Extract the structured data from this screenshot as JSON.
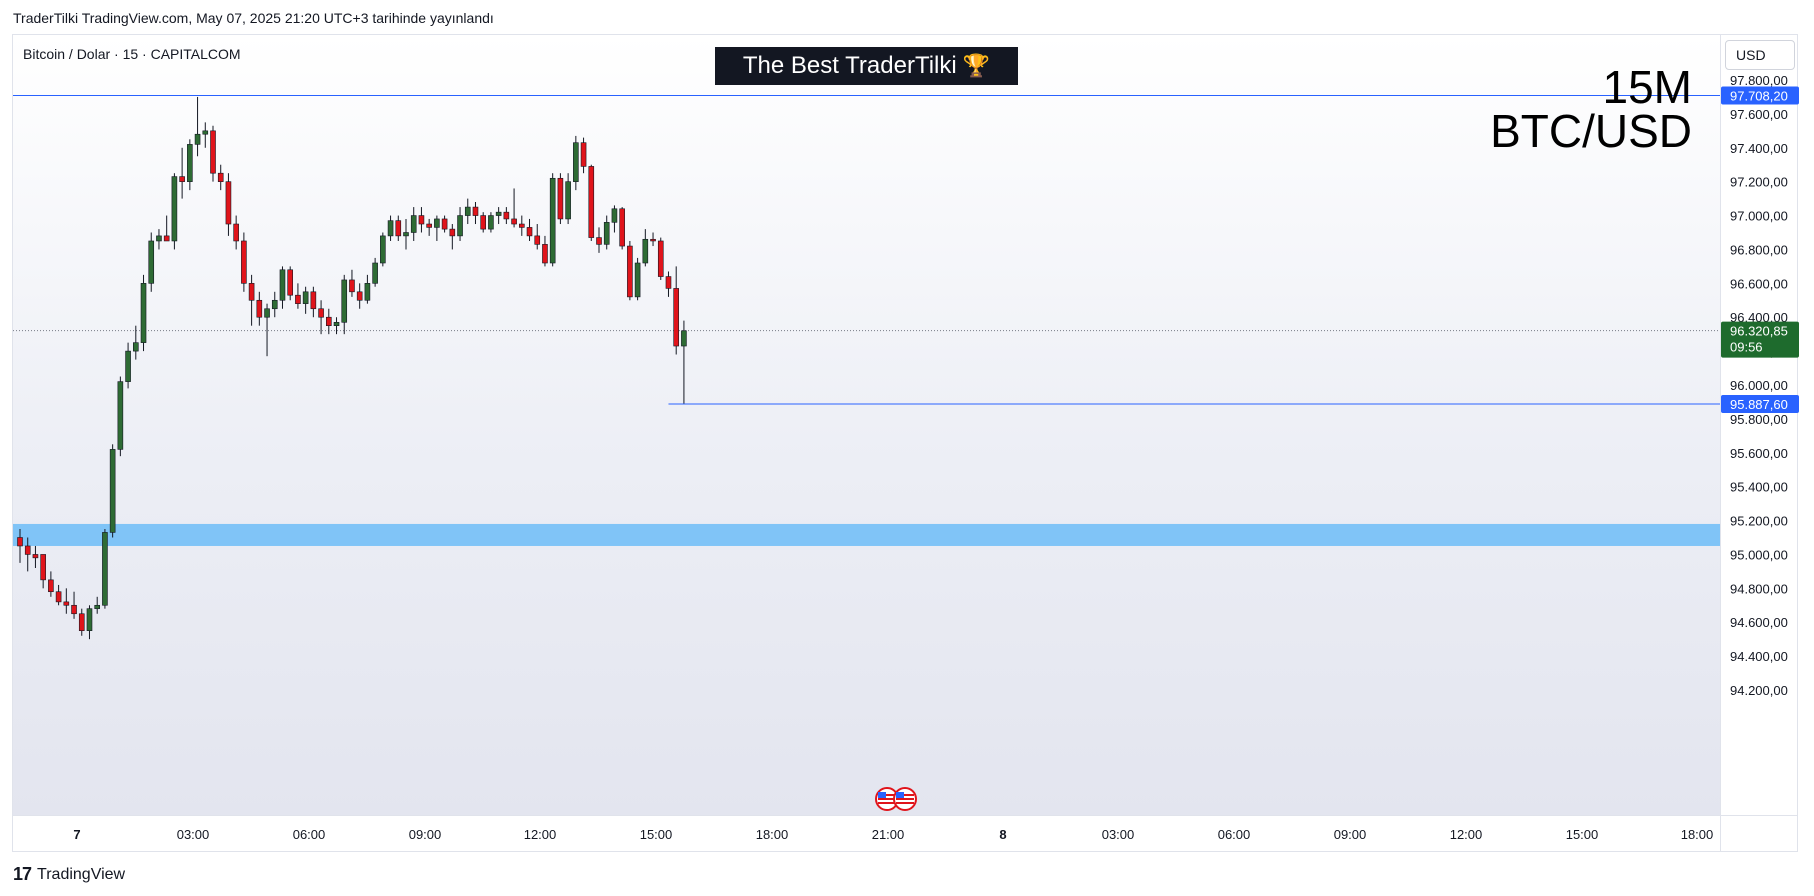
{
  "header": {
    "published": "TraderTilki TradingView.com, May 07, 2025 21:20 UTC+3 tarihinde yayınlandı"
  },
  "symbol": {
    "name": "Bitcoin / Dolar · 15 · CAPITALCOM"
  },
  "banner": {
    "text": "The Best TraderTilki",
    "icon": "trophy-icon"
  },
  "overlay": {
    "timeframe": "15M",
    "pair": "BTC/USD"
  },
  "currency": "USD",
  "footer": {
    "brand": "TradingView",
    "icon": "tradingview-logo-icon"
  },
  "colors": {
    "up": "#2e6b34",
    "down": "#e0141b",
    "line": "#2962ff",
    "zone": "#80c4f7",
    "price_label": "#1e6b2d"
  },
  "chart_data": {
    "type": "candlestick",
    "y_ticks": [
      "97.800,00",
      "97.600,00",
      "97.400,00",
      "97.200,00",
      "97.000,00",
      "96.800,00",
      "96.600,00",
      "96.400,00",
      "96.200,00",
      "96.000,00",
      "95.800,00",
      "95.600,00",
      "95.400,00",
      "95.200,00",
      "95.000,00",
      "94.800,00",
      "94.600,00",
      "94.400,00",
      "94.200,00"
    ],
    "x_ticks": [
      "7",
      "03:00",
      "06:00",
      "09:00",
      "12:00",
      "15:00",
      "18:00",
      "21:00",
      "8",
      "03:00",
      "06:00",
      "09:00",
      "12:00",
      "15:00",
      "18:00"
    ],
    "ylim": [
      94100,
      98000
    ],
    "horizontal_lines": [
      {
        "price": 97708.2,
        "label": "97.708,20"
      },
      {
        "price": 95887.6,
        "label": "95.887,60"
      }
    ],
    "zone": {
      "from": 95050,
      "to": 95180
    },
    "last_price": {
      "price": 96320.85,
      "label": "96.320,85",
      "countdown": "09:56"
    },
    "ohlc": [
      [
        95100,
        95150,
        94950,
        95050
      ],
      [
        95050,
        95100,
        94900,
        95000
      ],
      [
        95000,
        95050,
        94920,
        94980
      ],
      [
        95000,
        95000,
        94800,
        94850
      ],
      [
        94850,
        94900,
        94750,
        94780
      ],
      [
        94780,
        94820,
        94700,
        94720
      ],
      [
        94720,
        94800,
        94650,
        94700
      ],
      [
        94700,
        94780,
        94620,
        94650
      ],
      [
        94650,
        94680,
        94520,
        94550
      ],
      [
        94550,
        94700,
        94500,
        94680
      ],
      [
        94680,
        94750,
        94650,
        94700
      ],
      [
        94700,
        95150,
        94680,
        95130
      ],
      [
        95130,
        95650,
        95100,
        95620
      ],
      [
        95620,
        96050,
        95580,
        96020
      ],
      [
        96020,
        96250,
        95980,
        96200
      ],
      [
        96200,
        96350,
        96150,
        96250
      ],
      [
        96250,
        96650,
        96200,
        96600
      ],
      [
        96600,
        96900,
        96550,
        96850
      ],
      [
        96850,
        96920,
        96800,
        96880
      ],
      [
        96880,
        97000,
        96850,
        96850
      ],
      [
        96850,
        97250,
        96800,
        97230
      ],
      [
        97230,
        97400,
        97100,
        97200
      ],
      [
        97200,
        97450,
        97150,
        97420
      ],
      [
        97420,
        97700,
        97350,
        97480
      ],
      [
        97480,
        97550,
        97400,
        97500
      ],
      [
        97500,
        97530,
        97200,
        97250
      ],
      [
        97250,
        97300,
        97150,
        97200
      ],
      [
        97200,
        97250,
        96880,
        96950
      ],
      [
        96950,
        97000,
        96800,
        96850
      ],
      [
        96850,
        96900,
        96550,
        96600
      ],
      [
        96600,
        96650,
        96350,
        96500
      ],
      [
        96500,
        96550,
        96350,
        96400
      ],
      [
        96400,
        96480,
        96170,
        96450
      ],
      [
        96450,
        96550,
        96400,
        96500
      ],
      [
        96500,
        96700,
        96450,
        96680
      ],
      [
        96680,
        96700,
        96500,
        96530
      ],
      [
        96530,
        96600,
        96450,
        96480
      ],
      [
        96480,
        96580,
        96420,
        96550
      ],
      [
        96550,
        96580,
        96400,
        96450
      ],
      [
        96450,
        96500,
        96300,
        96400
      ],
      [
        96400,
        96450,
        96300,
        96350
      ],
      [
        96350,
        96400,
        96300,
        96370
      ],
      [
        96370,
        96650,
        96300,
        96620
      ],
      [
        96620,
        96680,
        96520,
        96550
      ],
      [
        96550,
        96600,
        96450,
        96500
      ],
      [
        96500,
        96650,
        96480,
        96600
      ],
      [
        96600,
        96750,
        96580,
        96720
      ],
      [
        96720,
        96900,
        96700,
        96880
      ],
      [
        96880,
        97000,
        96850,
        96970
      ],
      [
        96970,
        97000,
        96850,
        96880
      ],
      [
        96880,
        96980,
        96800,
        96900
      ],
      [
        96900,
        97050,
        96850,
        97000
      ],
      [
        97000,
        97050,
        96900,
        96950
      ],
      [
        96950,
        96980,
        96880,
        96930
      ],
      [
        96930,
        97000,
        96850,
        96980
      ],
      [
        96980,
        97000,
        96900,
        96920
      ],
      [
        96920,
        96950,
        96800,
        96880
      ],
      [
        96880,
        97050,
        96850,
        97000
      ],
      [
        97000,
        97100,
        96950,
        97050
      ],
      [
        97050,
        97080,
        96950,
        97000
      ],
      [
        97000,
        97020,
        96900,
        96920
      ],
      [
        96920,
        97020,
        96900,
        97000
      ],
      [
        97000,
        97050,
        96950,
        97020
      ],
      [
        97020,
        97050,
        96950,
        96980
      ],
      [
        96980,
        97160,
        96930,
        96950
      ],
      [
        96950,
        97000,
        96880,
        96930
      ],
      [
        96930,
        96980,
        96850,
        96880
      ],
      [
        96880,
        96950,
        96800,
        96830
      ],
      [
        96830,
        96880,
        96700,
        96720
      ],
      [
        96720,
        97250,
        96700,
        97220
      ],
      [
        97220,
        97250,
        96950,
        96980
      ],
      [
        96980,
        97250,
        96950,
        97200
      ],
      [
        97200,
        97470,
        97150,
        97430
      ],
      [
        97430,
        97460,
        97250,
        97290
      ],
      [
        97290,
        97300,
        96850,
        96870
      ],
      [
        96870,
        96930,
        96780,
        96830
      ],
      [
        96830,
        97000,
        96800,
        96960
      ],
      [
        96960,
        97060,
        96900,
        97040
      ],
      [
        97040,
        97050,
        96800,
        96820
      ],
      [
        96820,
        96850,
        96500,
        96520
      ],
      [
        96520,
        96750,
        96500,
        96720
      ],
      [
        96720,
        96920,
        96700,
        96860
      ],
      [
        96860,
        96900,
        96820,
        96850
      ],
      [
        96850,
        96870,
        96620,
        96640
      ],
      [
        96640,
        96670,
        96520,
        96570
      ],
      [
        96570,
        96700,
        96180,
        96230
      ],
      [
        96230,
        96380,
        95890,
        96320
      ]
    ]
  }
}
